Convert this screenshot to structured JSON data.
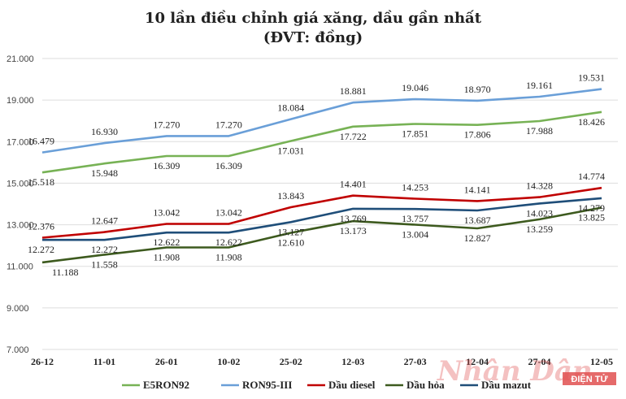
{
  "chart_data": {
    "type": "line",
    "title": "10 lần điều chỉnh giá xăng, dầu gần nhất",
    "subtitle": "(ĐVT: đồng)",
    "categories": [
      "26-12",
      "11-01",
      "26-01",
      "10-02",
      "25-02",
      "12-03",
      "27-03",
      "12-04",
      "27-04",
      "12-05"
    ],
    "y_ticks": [
      "7.000",
      "9.000",
      "11.000",
      "13.000",
      "15.000",
      "17.000",
      "19.000",
      "21.000"
    ],
    "ylim": [
      7000,
      21000
    ],
    "grid": true,
    "legend_position": "bottom",
    "series": [
      {
        "name": "E5RON92",
        "color": "#77b255",
        "values": [
          15518,
          15948,
          16309,
          16309,
          17031,
          17722,
          17851,
          17806,
          17988,
          18426
        ],
        "labels": [
          "15.518",
          "15.948",
          "16.309",
          "16.309",
          "17.031",
          "17.722",
          "17.851",
          "17.806",
          "17.988",
          "18.426"
        ]
      },
      {
        "name": "RON95-III",
        "color": "#6a9fd8",
        "values": [
          16479,
          16930,
          17270,
          17270,
          18084,
          18881,
          19046,
          18970,
          19161,
          19531
        ],
        "labels": [
          "16.479",
          "16.930",
          "17.270",
          "17.270",
          "18.084",
          "18.881",
          "19.046",
          "18.970",
          "19.161",
          "19.531"
        ]
      },
      {
        "name": "Dầu diesel",
        "color": "#c00000",
        "values": [
          12376,
          12647,
          13042,
          13042,
          13843,
          14401,
          14253,
          14141,
          14328,
          14774
        ],
        "labels": [
          "12.376",
          "12.647",
          "13.042",
          "13.042",
          "13.843",
          "14.401",
          "14.253",
          "14.141",
          "14.328",
          "14.774"
        ]
      },
      {
        "name": "Dầu hỏa",
        "color": "#3d5a1e",
        "values": [
          11188,
          11558,
          11908,
          11908,
          12610,
          13173,
          13004,
          12827,
          13259,
          13825
        ],
        "labels": [
          "11.188",
          "11.558",
          "11.908",
          "11.908",
          "12.610",
          "13.173",
          "13.004",
          "12.827",
          "13.259",
          "13.825"
        ]
      },
      {
        "name": "Dầu mazut",
        "color": "#1f4e79",
        "values": [
          12272,
          12272,
          12622,
          12622,
          13127,
          13769,
          13757,
          13687,
          14023,
          14279
        ],
        "labels": [
          "12.272",
          "12.272",
          "12.622",
          "12.622",
          "13.127",
          "13.769",
          "13.757",
          "13.687",
          "14.023",
          "14.279"
        ]
      }
    ]
  },
  "watermark": {
    "brand": "Nhân Dân",
    "badge": "ĐIỆN TỬ"
  }
}
